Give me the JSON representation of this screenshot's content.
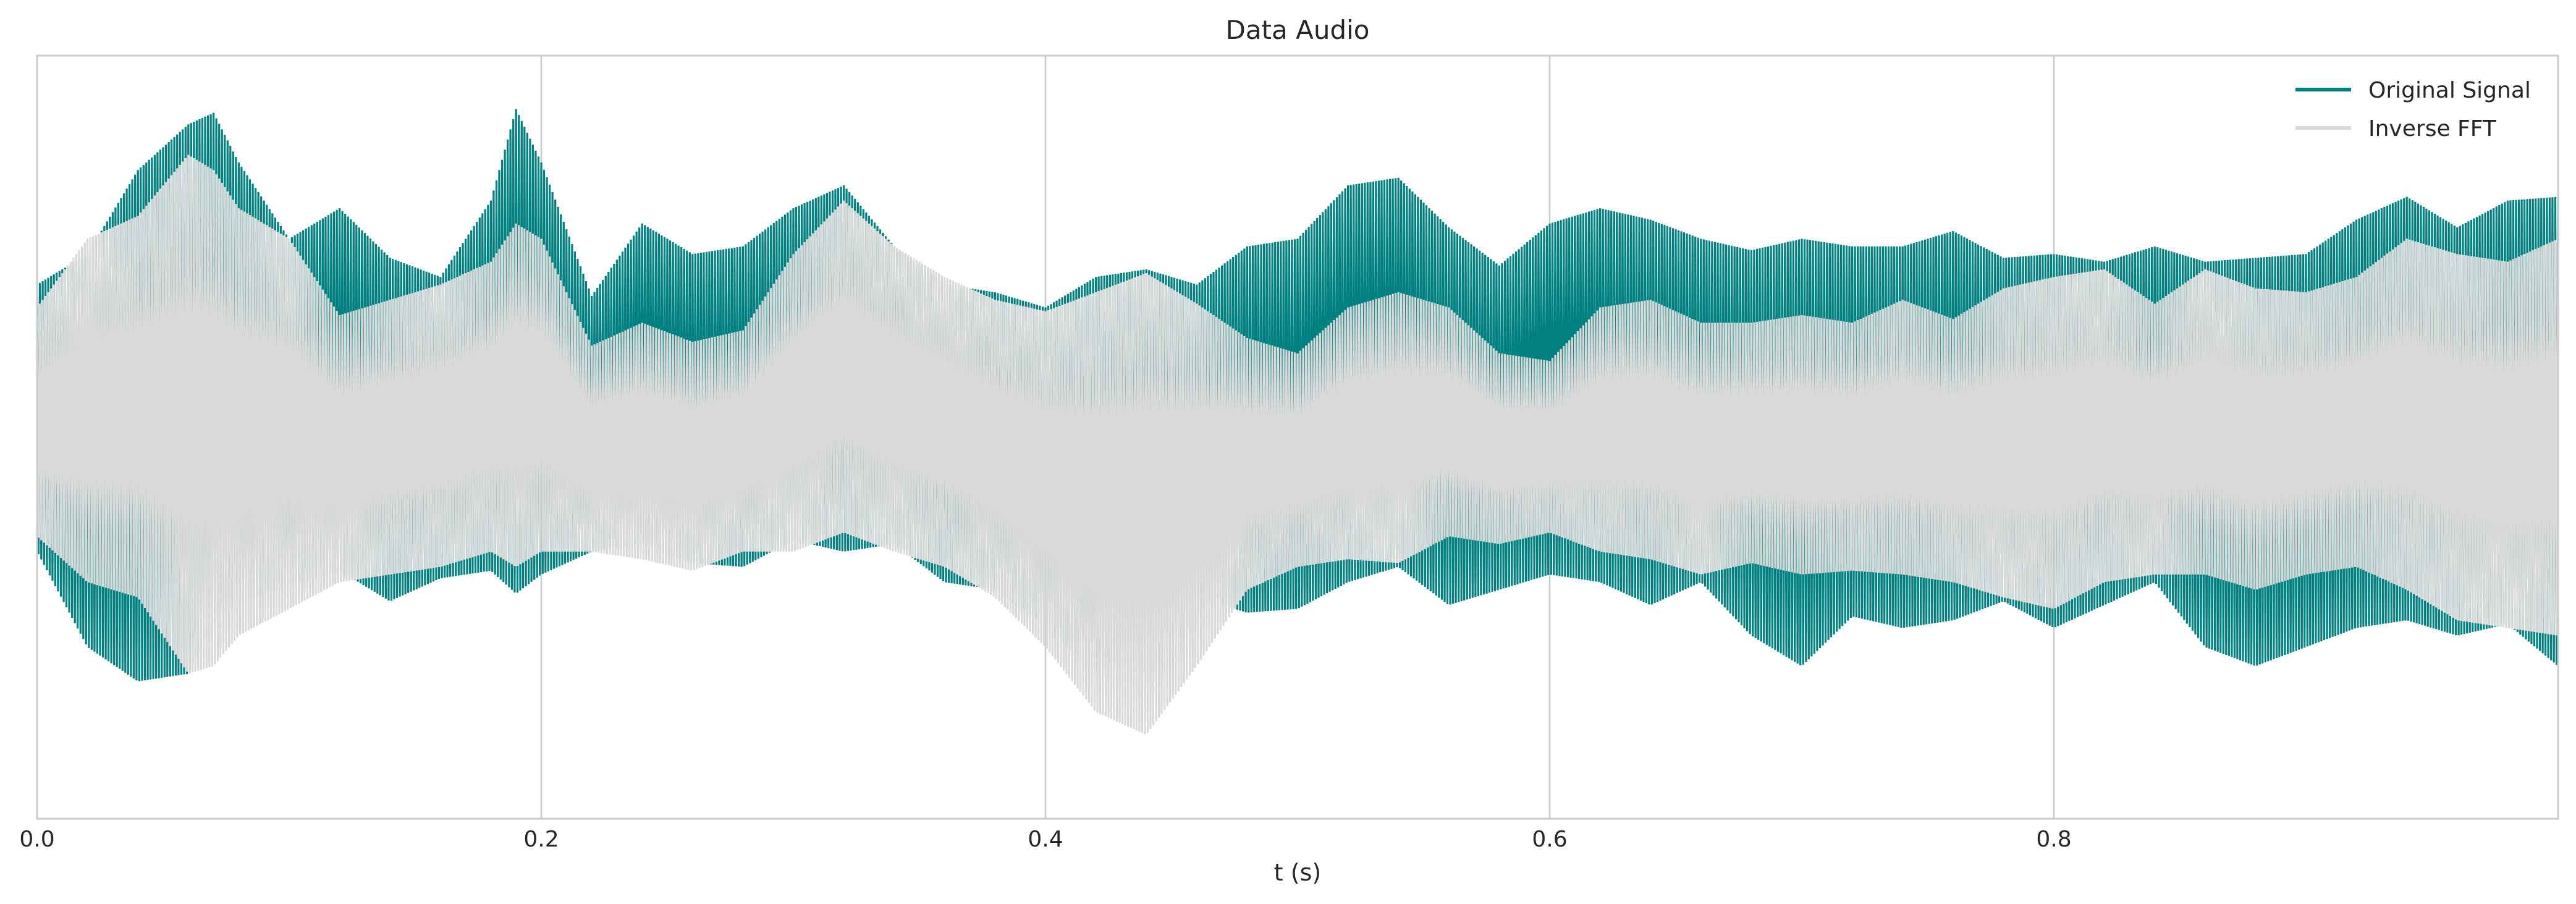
{
  "chart_data": {
    "type": "line",
    "title": "Data Audio",
    "xlabel": "t (s)",
    "ylabel": "",
    "xlim": [
      0.0,
      1.0
    ],
    "ylim": [
      -1.0,
      1.0
    ],
    "x_ticks": [
      0.0,
      0.2,
      0.4,
      0.6,
      0.8
    ],
    "x_tick_labels": [
      "0.0",
      "0.2",
      "0.4",
      "0.6",
      "0.8"
    ],
    "y_tick_labels": [],
    "grid": "x-only",
    "legend_placement": "upper-right",
    "envelope_x": [
      0.0,
      0.02,
      0.04,
      0.06,
      0.07,
      0.08,
      0.1,
      0.12,
      0.14,
      0.16,
      0.18,
      0.19,
      0.2,
      0.22,
      0.24,
      0.26,
      0.28,
      0.3,
      0.32,
      0.34,
      0.36,
      0.38,
      0.4,
      0.42,
      0.44,
      0.46,
      0.48,
      0.5,
      0.52,
      0.54,
      0.56,
      0.58,
      0.6,
      0.62,
      0.64,
      0.66,
      0.68,
      0.7,
      0.72,
      0.74,
      0.76,
      0.78,
      0.8,
      0.82,
      0.84,
      0.86,
      0.88,
      0.9,
      0.92,
      0.94,
      0.96,
      0.98,
      1.0
    ],
    "series": [
      {
        "name": "Original Signal",
        "color": "#008080",
        "upper": [
          0.4,
          0.48,
          0.7,
          0.82,
          0.85,
          0.72,
          0.52,
          0.6,
          0.47,
          0.42,
          0.62,
          0.86,
          0.72,
          0.37,
          0.56,
          0.48,
          0.5,
          0.6,
          0.66,
          0.5,
          0.4,
          0.38,
          0.34,
          0.42,
          0.44,
          0.4,
          0.5,
          0.52,
          0.66,
          0.68,
          0.55,
          0.45,
          0.56,
          0.6,
          0.57,
          0.52,
          0.49,
          0.52,
          0.5,
          0.5,
          0.54,
          0.47,
          0.48,
          0.46,
          0.5,
          0.46,
          0.47,
          0.48,
          0.57,
          0.63,
          0.55,
          0.62,
          0.63
        ],
        "lower": [
          -0.3,
          -0.55,
          -0.64,
          -0.62,
          -0.48,
          -0.43,
          -0.39,
          -0.35,
          -0.43,
          -0.37,
          -0.35,
          -0.41,
          -0.36,
          -0.3,
          -0.28,
          -0.33,
          -0.34,
          -0.27,
          -0.3,
          -0.28,
          -0.38,
          -0.4,
          -0.5,
          -0.62,
          -0.48,
          -0.42,
          -0.46,
          -0.45,
          -0.38,
          -0.34,
          -0.44,
          -0.4,
          -0.36,
          -0.38,
          -0.44,
          -0.38,
          -0.52,
          -0.6,
          -0.47,
          -0.5,
          -0.48,
          -0.43,
          -0.5,
          -0.44,
          -0.38,
          -0.55,
          -0.6,
          -0.55,
          -0.5,
          -0.48,
          -0.52,
          -0.49,
          -0.6
        ]
      },
      {
        "name": "Inverse FFT",
        "color": "#d9d9d9",
        "upper": [
          0.34,
          0.52,
          0.58,
          0.74,
          0.7,
          0.6,
          0.52,
          0.32,
          0.36,
          0.4,
          0.46,
          0.56,
          0.52,
          0.24,
          0.3,
          0.25,
          0.28,
          0.48,
          0.62,
          0.5,
          0.42,
          0.36,
          0.33,
          0.38,
          0.43,
          0.35,
          0.26,
          0.22,
          0.34,
          0.38,
          0.34,
          0.22,
          0.2,
          0.34,
          0.36,
          0.3,
          0.3,
          0.32,
          0.3,
          0.36,
          0.31,
          0.39,
          0.42,
          0.44,
          0.35,
          0.44,
          0.39,
          0.38,
          0.42,
          0.52,
          0.48,
          0.46,
          0.52
        ],
        "lower": [
          -0.26,
          -0.38,
          -0.42,
          -0.62,
          -0.6,
          -0.52,
          -0.45,
          -0.38,
          -0.36,
          -0.34,
          -0.3,
          -0.34,
          -0.3,
          -0.3,
          -0.32,
          -0.35,
          -0.3,
          -0.3,
          -0.25,
          -0.3,
          -0.34,
          -0.42,
          -0.55,
          -0.72,
          -0.78,
          -0.6,
          -0.4,
          -0.34,
          -0.32,
          -0.33,
          -0.26,
          -0.28,
          -0.25,
          -0.3,
          -0.32,
          -0.36,
          -0.33,
          -0.36,
          -0.35,
          -0.36,
          -0.38,
          -0.42,
          -0.45,
          -0.38,
          -0.36,
          -0.36,
          -0.4,
          -0.36,
          -0.34,
          -0.4,
          -0.48,
          -0.5,
          -0.52
        ]
      }
    ]
  }
}
